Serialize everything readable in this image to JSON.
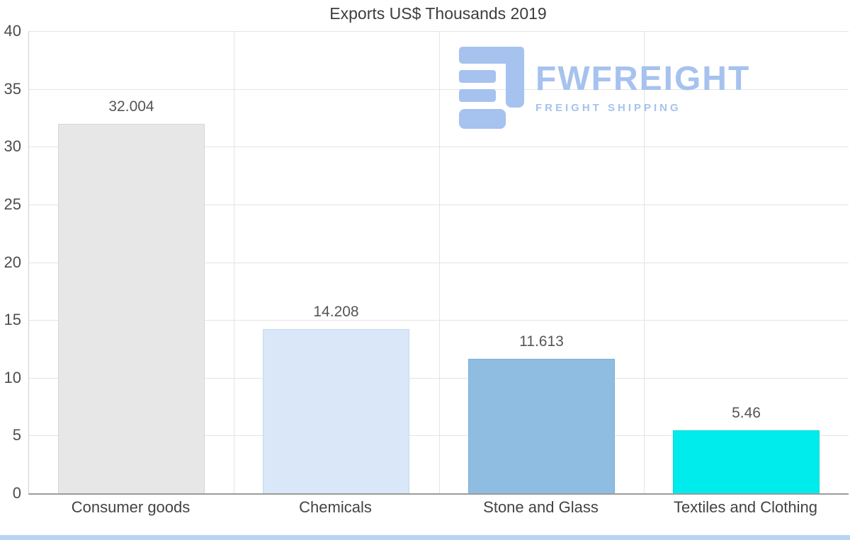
{
  "chart_data": {
    "type": "bar",
    "title": "Exports US$ Thousands 2019",
    "categories": [
      "Consumer goods",
      "Chemicals",
      "Stone and Glass",
      "Textiles and Clothing"
    ],
    "values": [
      32.004,
      14.208,
      11.613,
      5.46
    ],
    "value_labels": [
      "32.004",
      "14.208",
      "11.613",
      "5.46"
    ],
    "bar_colors": [
      "#e7e7e7",
      "#d9e7f8",
      "#8fbde1",
      "#00ecec"
    ],
    "bar_border_colors": [
      "#d6d6d6",
      "#c4daf2",
      "#7db0d8",
      "#00dada"
    ],
    "ylim": [
      0,
      40
    ],
    "yticks": [
      0,
      5,
      10,
      15,
      20,
      25,
      30,
      35,
      40
    ],
    "xlabel": "",
    "ylabel": "",
    "grid": true,
    "legend": "none"
  },
  "watermark": {
    "brand": "FWFREIGHT",
    "tagline": "FREIGHT SHIPPING",
    "color": "#a6c2ee"
  },
  "page": {
    "footer_strip_color": "#b9d4f3"
  }
}
